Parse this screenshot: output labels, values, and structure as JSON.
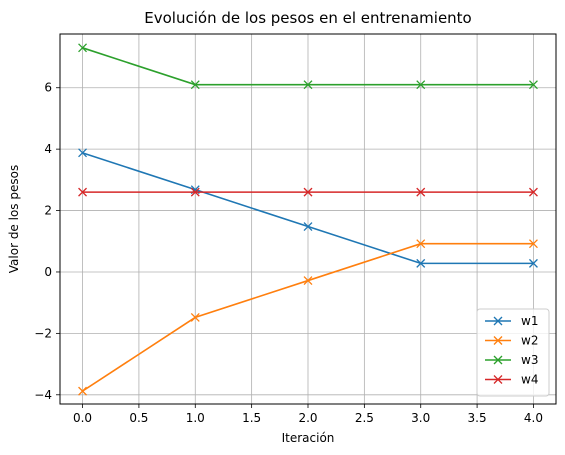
{
  "chart_data": {
    "type": "line",
    "title": "Evolución de los pesos en el entrenamiento",
    "xlabel": "Iteración",
    "ylabel": "Valor de los pesos",
    "x": [
      0,
      1,
      2,
      3,
      4
    ],
    "xlim": [
      -0.2,
      4.2
    ],
    "ylim": [
      -4.3,
      7.75
    ],
    "xticks": [
      0.0,
      0.5,
      1.0,
      1.5,
      2.0,
      2.5,
      3.0,
      3.5,
      4.0
    ],
    "xtick_labels": [
      "0.0",
      "0.5",
      "1.0",
      "1.5",
      "2.0",
      "2.5",
      "3.0",
      "3.5",
      "4.0"
    ],
    "yticks": [
      -4,
      -2,
      0,
      2,
      4,
      6
    ],
    "ytick_labels": [
      "−4",
      "−2",
      "0",
      "2",
      "4",
      "6"
    ],
    "grid": true,
    "legend_position": "lower-right",
    "marker": "x",
    "series": [
      {
        "name": "w1",
        "color": "#1f77b4",
        "values": [
          3.88,
          2.68,
          1.48,
          0.28,
          0.28
        ]
      },
      {
        "name": "w2",
        "color": "#ff7f0e",
        "values": [
          -3.88,
          -1.48,
          -0.28,
          0.92,
          0.92
        ]
      },
      {
        "name": "w3",
        "color": "#2ca02c",
        "values": [
          7.3,
          6.1,
          6.1,
          6.1,
          6.1
        ]
      },
      {
        "name": "w4",
        "color": "#d62728",
        "values": [
          2.6,
          2.6,
          2.6,
          2.6,
          2.6
        ]
      }
    ]
  }
}
